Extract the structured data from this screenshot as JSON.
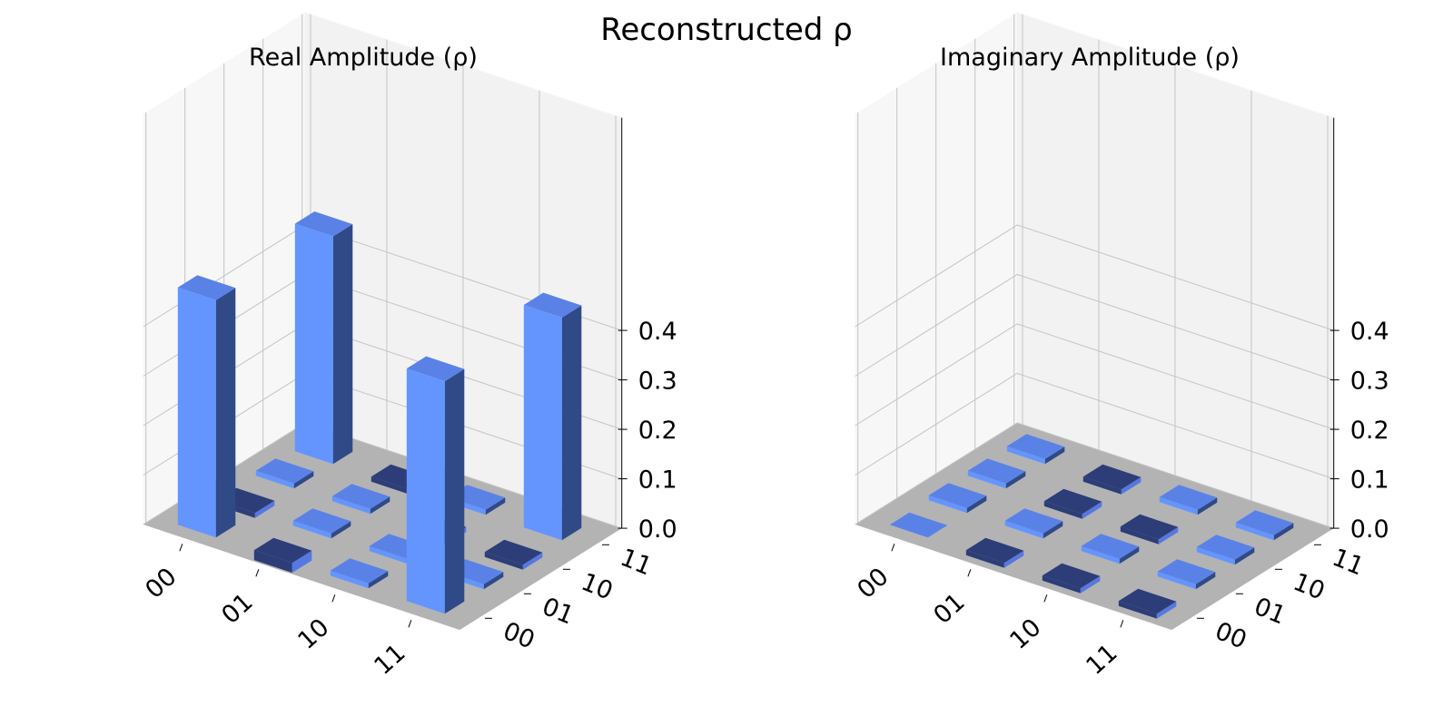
{
  "figure_title": "Reconstructed ρ",
  "colors": {
    "positive_face": "#6495ff",
    "positive_top": "#5a82e6",
    "positive_side": "#2f4a86",
    "negative_top": "#2c3d78",
    "negative_side": "#5678e0",
    "floor": "#b3b3b3",
    "pane_back": "#f2f2f2",
    "pane_side": "#f7f7f7",
    "grid": "#c4c4c4"
  },
  "chart_data": [
    {
      "type": "bar3d",
      "title": "Real Amplitude (ρ)",
      "row_labels": [
        "00",
        "01",
        "10",
        "11"
      ],
      "col_labels": [
        "00",
        "01",
        "10",
        "11"
      ],
      "zlim": [
        0,
        0.45
      ],
      "zticks": [
        "0.0",
        "0.1",
        "0.2",
        "0.3",
        "0.4"
      ],
      "grid": true,
      "values": [
        [
          0.48,
          -0.01,
          0.01,
          0.46
        ],
        [
          -0.02,
          0.01,
          0.01,
          -0.01
        ],
        [
          0.01,
          0.01,
          -0.01,
          0.01
        ],
        [
          0.47,
          0.01,
          -0.01,
          0.45
        ]
      ]
    },
    {
      "type": "bar3d",
      "title": "Imaginary Amplitude (ρ)",
      "row_labels": [
        "00",
        "01",
        "10",
        "11"
      ],
      "col_labels": [
        "00",
        "01",
        "10",
        "11"
      ],
      "zlim": [
        0,
        0.45
      ],
      "zticks": [
        "0.0",
        "0.1",
        "0.2",
        "0.3",
        "0.4"
      ],
      "grid": true,
      "values": [
        [
          0.0,
          0.01,
          0.01,
          0.01
        ],
        [
          -0.01,
          0.01,
          -0.01,
          -0.01
        ],
        [
          -0.01,
          0.01,
          -0.01,
          0.01
        ],
        [
          -0.01,
          0.01,
          0.01,
          0.01
        ]
      ]
    }
  ]
}
